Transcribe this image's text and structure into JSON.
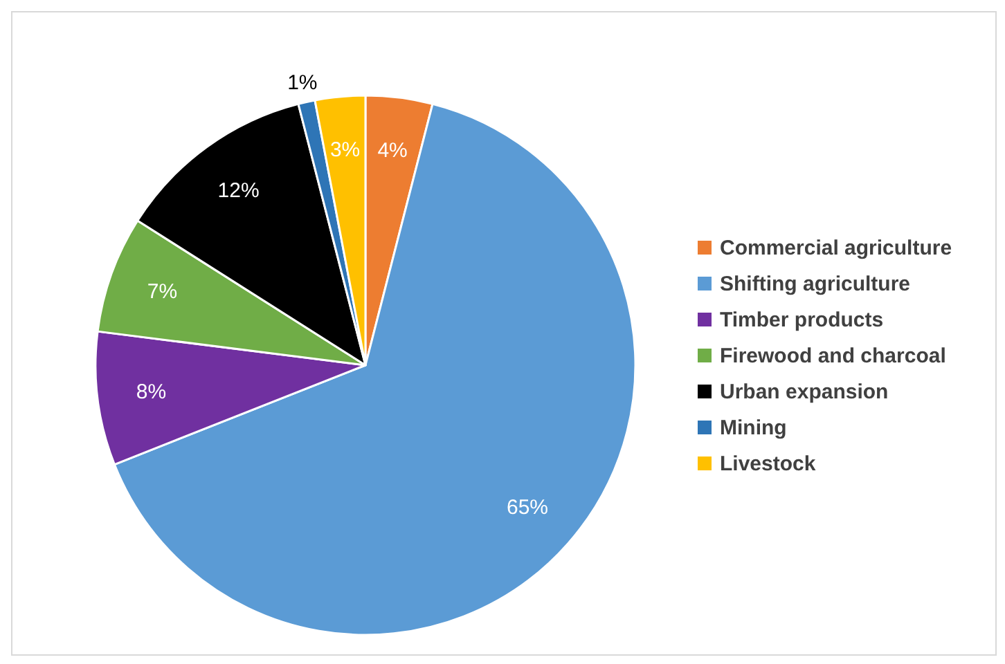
{
  "chart_data": {
    "type": "pie",
    "categories": [
      "Commercial agriculture",
      "Shifting agriculture",
      "Timber products",
      "Firewood and charcoal",
      "Urban expansion",
      "Mining",
      "Livestock"
    ],
    "values": [
      4,
      65,
      8,
      7,
      12,
      1,
      3
    ],
    "value_labels": [
      "4%",
      "65%",
      "8%",
      "7%",
      "12%",
      "1%",
      "3%"
    ],
    "colors": [
      "#ed7d31",
      "#5b9bd5",
      "#7030a0",
      "#70ad47",
      "#000000",
      "#2e75b6",
      "#ffc000"
    ],
    "legend": "right"
  }
}
